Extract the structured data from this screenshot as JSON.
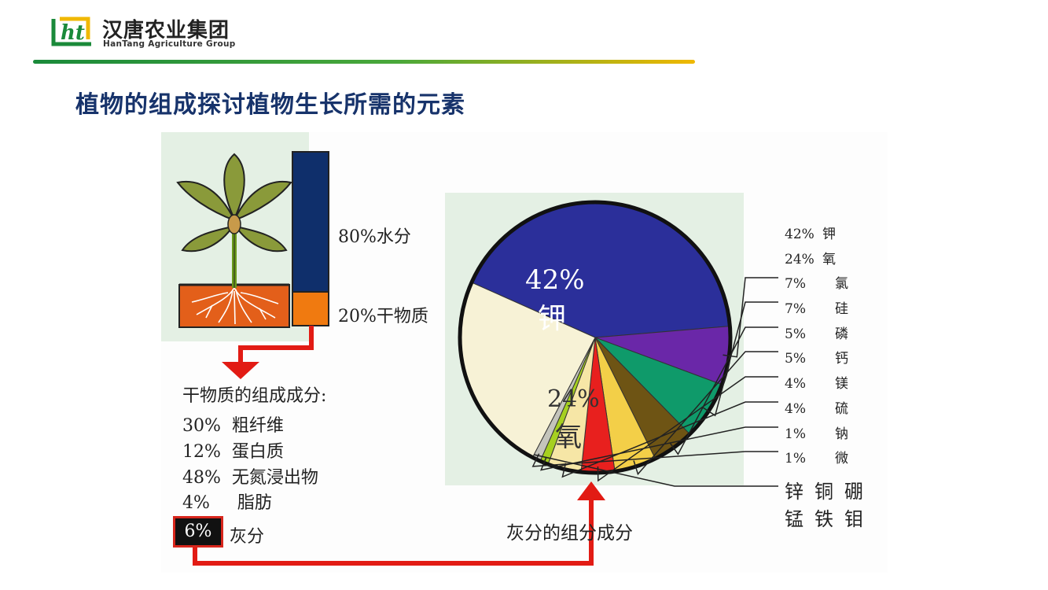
{
  "header": {
    "company_cn": "汉唐农业集团",
    "company_en": "HanTang Agriculture Group",
    "logo_letters": "ht"
  },
  "slide_title": "植物的组成探讨植物生长所需的元素",
  "plant_bar": {
    "water_label": "80%水分",
    "dry_label": "20%干物质",
    "water_fraction": 0.8,
    "dry_fraction": 0.2
  },
  "dry_matter": {
    "heading": "干物质的组成成分:",
    "items": [
      {
        "pct": "30%",
        "name": "粗纤维"
      },
      {
        "pct": "12%",
        "name": "蛋白质"
      },
      {
        "pct": "48%",
        "name": "无氮浸出物"
      },
      {
        "pct": "4%",
        "name": "脂肪"
      }
    ],
    "ash_badge": "6%",
    "ash_label": "灰分"
  },
  "ash_caption": "灰分的组分成分",
  "chart_data": {
    "type": "pie",
    "slices": [
      {
        "label": "钾",
        "value": 42,
        "color": "#2b2f9a"
      },
      {
        "label": "氧",
        "value": 24,
        "color": "#f7f2d6"
      },
      {
        "label": "氯",
        "value": 7,
        "color": "#6a27a8"
      },
      {
        "label": "硅",
        "value": 7,
        "color": "#0f9a6a"
      },
      {
        "label": "磷",
        "value": 5,
        "color": "#6e5414"
      },
      {
        "label": "钙",
        "value": 5,
        "color": "#f3cf48"
      },
      {
        "label": "镁",
        "value": 4,
        "color": "#e8201e"
      },
      {
        "label": "硫",
        "value": 4,
        "color": "#f6e6a6"
      },
      {
        "label": "钠",
        "value": 1,
        "color": "#a6d020"
      },
      {
        "label": "微",
        "value": 1,
        "color": "#c4c4bc"
      }
    ],
    "inner_labels": [
      {
        "pct": "42%",
        "name": "钾"
      },
      {
        "pct": "24%",
        "name": "氧"
      }
    ],
    "legend": [
      {
        "pct": "42%",
        "name": "钾"
      },
      {
        "pct": "24%",
        "name": "氧"
      },
      {
        "pct": "7%",
        "name": "氯"
      },
      {
        "pct": "7%",
        "name": "硅"
      },
      {
        "pct": "5%",
        "name": "磷"
      },
      {
        "pct": "5%",
        "name": "钙"
      },
      {
        "pct": "4%",
        "name": "镁"
      },
      {
        "pct": "4%",
        "name": "硫"
      },
      {
        "pct": "1%",
        "name": "钠"
      },
      {
        "pct": "1%",
        "name": "微"
      }
    ],
    "trace_elements_row1": "锌铜硼",
    "trace_elements_row2": "锰铁钼"
  },
  "colors": {
    "title": "#17336b",
    "water_bar": "#0f2f6b",
    "dry_bar": "#f07a10",
    "arrow": "#e21b14"
  }
}
